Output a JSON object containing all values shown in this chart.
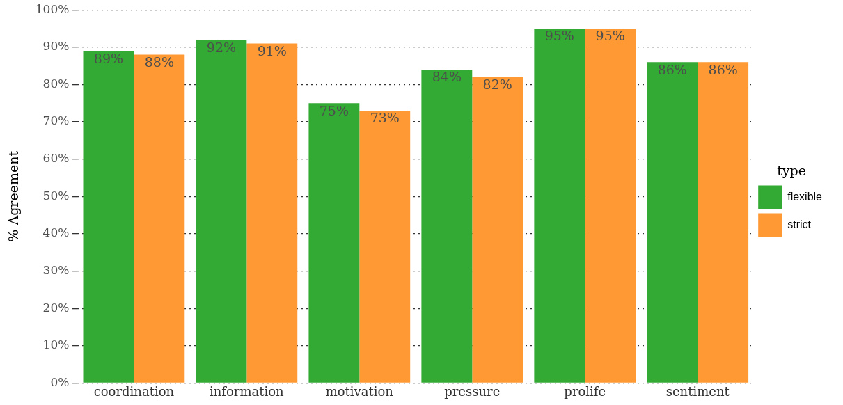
{
  "chart_data": {
    "type": "bar",
    "ylabel": "% Agreement",
    "legend_title": "type",
    "categories": [
      "coordination",
      "information",
      "motivation",
      "pressure",
      "prolife",
      "sentiment"
    ],
    "series": [
      {
        "name": "flexible",
        "color": "#33aa33",
        "values": [
          89,
          92,
          75,
          84,
          95,
          86
        ],
        "value_labels": [
          "89%",
          "92%",
          "75%",
          "84%",
          "95%",
          "86%"
        ]
      },
      {
        "name": "strict",
        "color": "#ff9933",
        "values": [
          88,
          91,
          73,
          82,
          95,
          86
        ],
        "value_labels": [
          "88%",
          "91%",
          "73%",
          "82%",
          "95%",
          "86%"
        ]
      }
    ],
    "ylim": [
      0,
      100
    ],
    "yticks": [
      {
        "value": 0,
        "label": "0%"
      },
      {
        "value": 10,
        "label": "10%"
      },
      {
        "value": 20,
        "label": "20%"
      },
      {
        "value": 30,
        "label": "30%"
      },
      {
        "value": 40,
        "label": "40%"
      },
      {
        "value": 50,
        "label": "50%"
      },
      {
        "value": 60,
        "label": "60%"
      },
      {
        "value": 70,
        "label": "70%"
      },
      {
        "value": 80,
        "label": "80%"
      },
      {
        "value": 90,
        "label": "90%"
      },
      {
        "value": 100,
        "label": "100%"
      }
    ],
    "grid": "y",
    "legend": "right"
  }
}
